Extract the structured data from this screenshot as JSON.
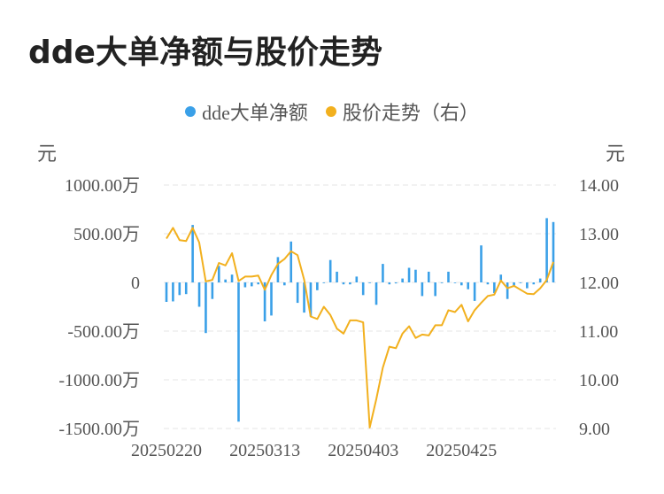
{
  "title": "dde大单净额与股价走势",
  "legend": [
    {
      "label": "dde大单净额",
      "color": "#3aa0e8"
    },
    {
      "label": "股价走势（右）",
      "color": "#f2b01e"
    }
  ],
  "left_unit": "元",
  "right_unit": "元",
  "chart_data": {
    "type": "bar+line",
    "left_axis": {
      "ticks": [
        "1000.00万",
        "500.00万",
        "0",
        "-500.00万",
        "-1000.00万",
        "-1500.00万"
      ],
      "tick_values": [
        1000,
        500,
        0,
        -500,
        -1000,
        -1500
      ],
      "ylim": [
        -1500,
        1000
      ],
      "unit": "万元"
    },
    "right_axis": {
      "ticks": [
        "14.00",
        "13.00",
        "12.00",
        "11.00",
        "10.00",
        "9.00"
      ],
      "tick_values": [
        14,
        13,
        12,
        11,
        10,
        9
      ],
      "ylim": [
        9,
        14
      ]
    },
    "x_ticks": [
      {
        "label": "20250220",
        "index": 0
      },
      {
        "label": "20250313",
        "index": 15
      },
      {
        "label": "20250403",
        "index": 30
      },
      {
        "label": "20250425",
        "index": 45
      }
    ],
    "grid": true,
    "series": [
      {
        "name": "dde大单净额",
        "type": "bar",
        "color": "#3aa0e8",
        "values": [
          -200,
          -195,
          -130,
          -120,
          590,
          -250,
          -520,
          -170,
          170,
          30,
          80,
          -1430,
          -50,
          -40,
          -20,
          -400,
          -340,
          260,
          -30,
          420,
          -210,
          -310,
          -350,
          -80,
          0,
          230,
          110,
          -20,
          -20,
          60,
          -130,
          0,
          -230,
          190,
          -20,
          -10,
          40,
          150,
          130,
          -140,
          110,
          -140,
          0,
          110,
          0,
          -30,
          -70,
          -190,
          380,
          -20,
          -110,
          80,
          -170,
          -40,
          0,
          -60,
          -20,
          40,
          660,
          620
        ]
      },
      {
        "name": "股价走势（右）",
        "type": "line",
        "color": "#f2b01e",
        "values": [
          12.9,
          13.12,
          12.87,
          12.85,
          13.12,
          12.82,
          12.02,
          12.05,
          12.4,
          12.35,
          12.6,
          12.03,
          12.12,
          12.12,
          12.14,
          11.85,
          12.15,
          12.38,
          12.48,
          12.64,
          12.56,
          12.06,
          11.3,
          11.25,
          11.5,
          11.33,
          11.05,
          10.95,
          11.22,
          11.22,
          11.18,
          9.02,
          9.6,
          10.25,
          10.68,
          10.65,
          10.95,
          11.1,
          10.86,
          10.93,
          10.91,
          11.12,
          11.12,
          11.43,
          11.39,
          11.54,
          11.2,
          11.43,
          11.58,
          11.72,
          11.75,
          12.04,
          11.88,
          11.93,
          11.85,
          11.77,
          11.76,
          11.88,
          12.05,
          12.42
        ]
      }
    ]
  }
}
